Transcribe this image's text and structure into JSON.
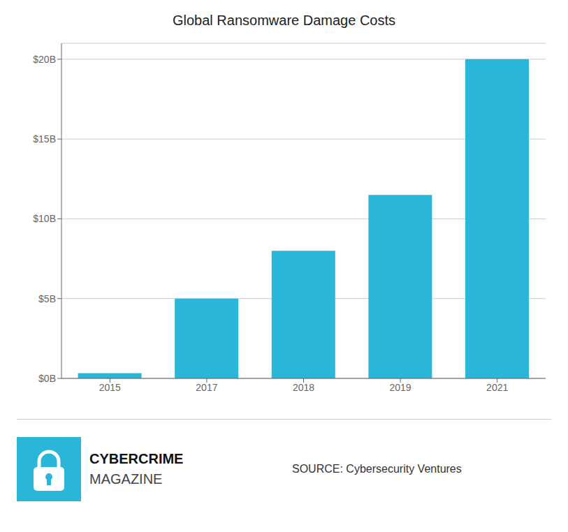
{
  "chart_data": {
    "type": "bar",
    "title": "Global Ransomware Damage Costs",
    "categories": [
      "2015",
      "2017",
      "2018",
      "2019",
      "2021"
    ],
    "values": [
      0.325,
      5.0,
      8.0,
      11.5,
      20.0
    ],
    "color": "#29B6D8",
    "ylim": [
      0,
      21.0
    ],
    "yticks": [
      {
        "value": 0,
        "label": "$0B"
      },
      {
        "value": 5,
        "label": "$5B"
      },
      {
        "value": 10,
        "label": "$10B"
      },
      {
        "value": 15,
        "label": "$15B"
      },
      {
        "value": 20,
        "label": "$20B"
      }
    ],
    "grid": true,
    "annotations": [
      "CYBERCRIME",
      "MAGAZINE",
      "SOURCE: Cybersecurity Ventures"
    ]
  }
}
